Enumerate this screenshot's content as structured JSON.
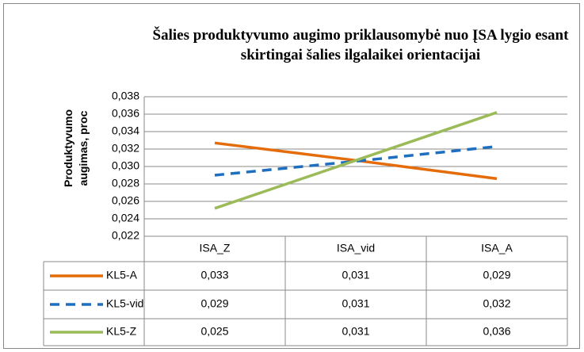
{
  "chart_data": {
    "type": "line",
    "title": "Šalies produktyvumo augimo priklausomybė nuo ĮSA lygio esant skirtingai šalies ilgalaikei orientacijai",
    "y_label": "Produktyvumo augimas, proc",
    "categories": [
      "ISA_Z",
      "ISA_vid",
      "ISA_A"
    ],
    "series": [
      {
        "name": "KL5-A",
        "color": "#e46c0a",
        "linestyle": "solid",
        "values": [
          0.0327,
          0.0307,
          0.0286
        ],
        "value_labels": [
          "0,033",
          "0,031",
          "0,029"
        ]
      },
      {
        "name": "KL5-vid",
        "color": "#1f6fc0",
        "linestyle": "dashed",
        "values": [
          0.029,
          0.0306,
          0.0323
        ],
        "value_labels": [
          "0,029",
          "0,031",
          "0,032"
        ]
      },
      {
        "name": "KL5-Z",
        "color": "#9bbb59",
        "linestyle": "solid",
        "values": [
          0.0252,
          0.0307,
          0.0362
        ],
        "value_labels": [
          "0,025",
          "0,031",
          "0,036"
        ]
      }
    ],
    "ylim": [
      0.022,
      0.038
    ],
    "yticks": [
      {
        "value": 0.022,
        "label": "0,022"
      },
      {
        "value": 0.024,
        "label": "0,024"
      },
      {
        "value": 0.026,
        "label": "0,026"
      },
      {
        "value": 0.028,
        "label": "0,028"
      },
      {
        "value": 0.03,
        "label": "0,030"
      },
      {
        "value": 0.032,
        "label": "0,032"
      },
      {
        "value": 0.034,
        "label": "0,034"
      },
      {
        "value": 0.036,
        "label": "0,036"
      },
      {
        "value": 0.038,
        "label": "0,038"
      }
    ],
    "grid": true
  }
}
